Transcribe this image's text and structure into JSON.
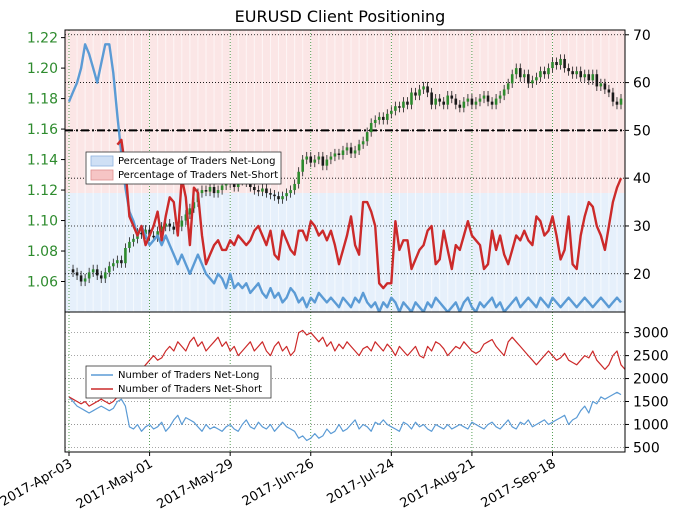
{
  "chart_data": [
    {
      "type": "candlestick",
      "title": "EURUSD Client Positioning",
      "left_axis": {
        "ticks": [
          1.06,
          1.08,
          1.1,
          1.12,
          1.14,
          1.16,
          1.18,
          1.2,
          1.22
        ],
        "range": [
          1.04,
          1.225
        ],
        "color": "#2e8b2e"
      },
      "right_axis": {
        "ticks": [
          20,
          30,
          40,
          50,
          60,
          70
        ],
        "range": [
          12,
          71
        ]
      },
      "x_ticks": [
        "2017-Apr-03",
        "2017-May-01",
        "2017-May-29",
        "2017-Jun-26",
        "2017-Jul-24",
        "2017-Aug-21",
        "2017-Sep-18"
      ],
      "reference_line_pct": 50,
      "price_close": [
        1.068,
        1.066,
        1.064,
        1.06,
        1.062,
        1.066,
        1.068,
        1.064,
        1.062,
        1.066,
        1.07,
        1.072,
        1.074,
        1.072,
        1.082,
        1.086,
        1.088,
        1.092,
        1.091,
        1.094,
        1.09,
        1.089,
        1.093,
        1.096,
        1.098,
        1.096,
        1.094,
        1.096,
        1.1,
        1.104,
        1.108,
        1.112,
        1.118,
        1.12,
        1.119,
        1.122,
        1.118,
        1.12,
        1.123,
        1.126,
        1.124,
        1.122,
        1.126,
        1.128,
        1.125,
        1.122,
        1.12,
        1.119,
        1.121,
        1.118,
        1.117,
        1.116,
        1.114,
        1.116,
        1.118,
        1.12,
        1.124,
        1.132,
        1.14,
        1.142,
        1.138,
        1.14,
        1.142,
        1.136,
        1.14,
        1.142,
        1.144,
        1.143,
        1.146,
        1.148,
        1.144,
        1.146,
        1.15,
        1.152,
        1.158,
        1.164,
        1.166,
        1.168,
        1.166,
        1.17,
        1.172,
        1.175,
        1.174,
        1.178,
        1.176,
        1.184,
        1.182,
        1.186,
        1.188,
        1.184,
        1.176,
        1.18,
        1.178,
        1.176,
        1.182,
        1.18,
        1.176,
        1.174,
        1.178,
        1.18,
        1.176,
        1.178,
        1.18,
        1.182,
        1.178,
        1.176,
        1.18,
        1.182,
        1.186,
        1.19,
        1.196,
        1.2,
        1.194,
        1.196,
        1.19,
        1.192,
        1.194,
        1.198,
        1.196,
        1.2,
        1.204,
        1.202,
        1.206,
        1.2,
        1.198,
        1.196,
        1.198,
        1.194,
        1.196,
        1.192,
        1.196,
        1.188,
        1.19,
        1.186,
        1.184,
        1.178,
        1.176,
        1.18
      ],
      "series": [
        {
          "name": "Percentage of Traders Net-Long",
          "color": "#5b9bd5",
          "values": [
            56,
            58,
            60,
            63,
            68,
            66,
            63,
            60,
            64,
            68,
            68,
            62,
            53,
            45,
            38,
            33,
            31,
            28,
            30,
            28,
            26,
            27,
            28,
            26,
            28,
            26,
            24,
            22,
            24,
            22,
            20,
            22,
            24,
            22,
            20,
            19,
            18,
            20,
            19,
            17,
            20,
            17,
            18,
            17,
            18,
            16,
            17,
            18,
            16,
            15,
            17,
            15,
            16,
            14,
            15,
            17,
            16,
            14,
            15,
            13,
            15,
            14,
            16,
            15,
            14,
            15,
            14,
            13,
            15,
            14,
            13,
            15,
            14,
            16,
            14,
            13,
            14,
            12,
            14,
            13,
            15,
            14,
            12,
            14,
            13,
            12,
            14,
            13,
            12,
            14,
            13,
            15,
            14,
            13,
            12,
            13,
            14,
            12,
            14,
            15,
            13,
            12,
            14,
            13,
            14,
            15,
            13,
            14,
            12,
            13,
            14,
            15,
            13,
            14,
            15,
            14,
            13,
            15,
            14,
            13,
            15,
            14,
            13,
            14,
            15,
            14,
            13,
            14,
            15,
            14,
            13,
            14,
            15,
            14,
            13,
            14,
            15,
            14
          ]
        },
        {
          "name": "Percentage of Traders Net-Short",
          "color": "#cc2a2a",
          "values": [
            null,
            null,
            null,
            null,
            null,
            null,
            null,
            null,
            null,
            null,
            null,
            null,
            47,
            48,
            42,
            32,
            30,
            28,
            30,
            26,
            28,
            30,
            33,
            27,
            32,
            36,
            35,
            28,
            40,
            36,
            26,
            38,
            37,
            28,
            22,
            24,
            26,
            27,
            25,
            25,
            27,
            26,
            28,
            27,
            26,
            27,
            29,
            30,
            28,
            26,
            29,
            24,
            23,
            29,
            27,
            25,
            24,
            29,
            29,
            27,
            31,
            30,
            28,
            29,
            27,
            29,
            26,
            22,
            25,
            28,
            32,
            26,
            24,
            35,
            35,
            33,
            30,
            18,
            17,
            18,
            18,
            31,
            25,
            27,
            27,
            21,
            23,
            25,
            26,
            29,
            30,
            22,
            23,
            29,
            25,
            21,
            26,
            25,
            28,
            31,
            28,
            27,
            26,
            21,
            22,
            29,
            25,
            28,
            24,
            22,
            25,
            28,
            27,
            29,
            27,
            26,
            32,
            31,
            28,
            29,
            32,
            28,
            23,
            25,
            32,
            22,
            21,
            28,
            32,
            35,
            34,
            30,
            28,
            25,
            30,
            35,
            38,
            40
          ]
        }
      ]
    },
    {
      "type": "line",
      "right_axis": {
        "ticks": [
          500,
          1000,
          1500,
          2000,
          2500,
          3000
        ],
        "range": [
          400,
          3450
        ]
      },
      "series": [
        {
          "name": "Number of Traders Net-Long",
          "color": "#5b9bd5",
          "values": [
            1600,
            1500,
            1400,
            1350,
            1300,
            1250,
            1300,
            1350,
            1400,
            1350,
            1300,
            1350,
            1500,
            1550,
            1400,
            950,
            900,
            1000,
            850,
            950,
            1000,
            900,
            950,
            1050,
            850,
            950,
            1100,
            1200,
            1000,
            1150,
            1100,
            1050,
            950,
            850,
            1000,
            900,
            950,
            900,
            850,
            950,
            1000,
            900,
            850,
            1000,
            1100,
            950,
            900,
            1050,
            950,
            900,
            1000,
            850,
            950,
            1050,
            950,
            900,
            850,
            700,
            750,
            650,
            700,
            800,
            700,
            750,
            900,
            800,
            850,
            1000,
            850,
            900,
            1000,
            1100,
            900,
            1000,
            950,
            850,
            1050,
            1000,
            1100,
            1000,
            950,
            900,
            850,
            1050,
            1000,
            900,
            1050,
            950,
            1000,
            900,
            850,
            1000,
            950,
            900,
            1000,
            900,
            950,
            1000,
            950,
            900,
            1050,
            1000,
            950,
            900,
            1000,
            1050,
            950,
            900,
            1000,
            1100,
            950,
            900,
            1050,
            1000,
            1100,
            950,
            1000,
            1050,
            1100,
            1000,
            1050,
            1100,
            1150,
            1200,
            1000,
            1100,
            1150,
            1300,
            1400,
            1250,
            1500,
            1450,
            1600,
            1550,
            1600,
            1650,
            1700,
            1650
          ]
        },
        {
          "name": "Number of Traders Net-Short",
          "color": "#cc2a2a",
          "values": [
            1600,
            1550,
            1500,
            1450,
            1500,
            1400,
            1450,
            1500,
            1550,
            1500,
            1450,
            1500,
            1600,
            1700,
            1800,
            1900,
            2000,
            2100,
            2200,
            2300,
            2400,
            2500,
            2400,
            2450,
            2600,
            2700,
            2600,
            2800,
            2700,
            2600,
            2800,
            2900,
            2700,
            2800,
            2600,
            2700,
            2800,
            2900,
            2700,
            2800,
            2600,
            2700,
            2500,
            2600,
            2700,
            2800,
            2600,
            2700,
            2800,
            2600,
            2500,
            2700,
            2800,
            2600,
            2700,
            2500,
            2600,
            3000,
            3050,
            2950,
            3000,
            2900,
            2800,
            2900,
            2700,
            2800,
            2600,
            2750,
            2650,
            2800,
            2700,
            2600,
            2500,
            2650,
            2700,
            2600,
            2800,
            2700,
            2600,
            2750,
            2650,
            2500,
            2700,
            2600,
            2500,
            2600,
            2700,
            2500,
            2450,
            2700,
            2600,
            2800,
            2750,
            2650,
            2500,
            2600,
            2700,
            2650,
            2800,
            2700,
            2600,
            2550,
            2600,
            2750,
            2800,
            2850,
            2700,
            2600,
            2500,
            2800,
            2900,
            2800,
            2700,
            2600,
            2500,
            2400,
            2300,
            2400,
            2500,
            2600,
            2500,
            2400,
            2450,
            2550,
            2400,
            2350,
            2300,
            2400,
            2500,
            2450,
            2600,
            2400,
            2300,
            2200,
            2300,
            2500,
            2600,
            2300,
            2200,
            2300,
            2200,
            2350
          ]
        }
      ]
    }
  ]
}
